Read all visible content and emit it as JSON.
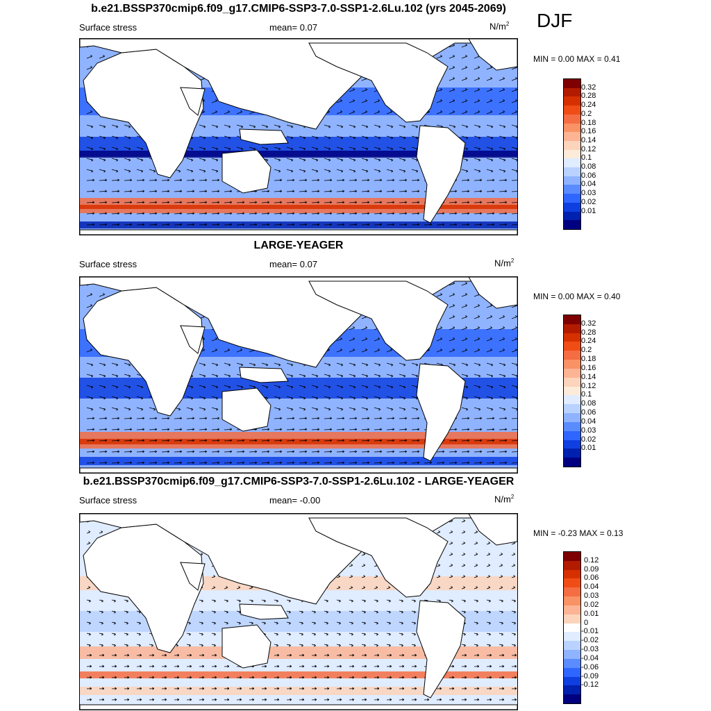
{
  "season": "DJF",
  "colors": {
    "land": "#ffffff",
    "coast": "#000000",
    "arrow": "#000000"
  },
  "panels": [
    {
      "title": "b.e21.BSSP370cmip6.f09_g17.CMIP6-SSP3-7.0-SSP1-2.6Lu.102 (yrs 2045-2069)",
      "variable": "Surface stress",
      "mean_label": "mean=",
      "mean_value": "0.07",
      "units": "N/m",
      "units_sup": "2",
      "min_label": "MIN =",
      "min_value": "0.00",
      "max_label": "MAX =",
      "max_value": "0.41",
      "colorbar_labels": [
        "0.32",
        "0.28",
        "0.24",
        "0.2",
        "0.18",
        "0.16",
        "0.14",
        "0.12",
        "0.1",
        "0.08",
        "0.06",
        "0.04",
        "0.03",
        "0.02",
        "0.01"
      ],
      "colorbar_colors": [
        "#7f0000",
        "#b31b00",
        "#d73000",
        "#f04d16",
        "#f46d43",
        "#f99265",
        "#fcb494",
        "#fcd4bb",
        "#fdebd9",
        "#e0ecff",
        "#b9d2ff",
        "#8fb3ff",
        "#5a8cff",
        "#2f66ff",
        "#0f3fe0",
        "#0020b0",
        "#000080"
      ]
    },
    {
      "title": "LARGE-YEAGER",
      "variable": "Surface stress",
      "mean_label": "mean=",
      "mean_value": "0.07",
      "units": "N/m",
      "units_sup": "2",
      "min_label": "MIN =",
      "min_value": "0.00",
      "max_label": "MAX =",
      "max_value": "0.40",
      "colorbar_labels": [
        "0.32",
        "0.28",
        "0.24",
        "0.2",
        "0.18",
        "0.16",
        "0.14",
        "0.12",
        "0.1",
        "0.08",
        "0.06",
        "0.04",
        "0.03",
        "0.02",
        "0.01"
      ],
      "colorbar_colors": [
        "#7f0000",
        "#b31b00",
        "#d73000",
        "#f04d16",
        "#f46d43",
        "#f99265",
        "#fcb494",
        "#fcd4bb",
        "#fdebd9",
        "#e0ecff",
        "#b9d2ff",
        "#8fb3ff",
        "#5a8cff",
        "#2f66ff",
        "#0f3fe0",
        "#0020b0",
        "#000080"
      ]
    },
    {
      "title": "b.e21.BSSP370cmip6.f09_g17.CMIP6-SSP3-7.0-SSP1-2.6Lu.102 - LARGE-YEAGER",
      "variable": "Surface stress",
      "mean_label": "mean=",
      "mean_value": "-0.00",
      "units": "N/m",
      "units_sup": "2",
      "min_label": "MIN =",
      "min_value": "-0.23",
      "max_label": "MAX =",
      "max_value": "0.13",
      "colorbar_labels": [
        "0.12",
        "0.09",
        "0.06",
        "0.04",
        "0.03",
        "0.02",
        "0.01",
        "0",
        "-0.01",
        "-0.02",
        "-0.03",
        "-0.04",
        "-0.06",
        "-0.09",
        "-0.12"
      ],
      "colorbar_colors": [
        "#7f0000",
        "#b31b00",
        "#d73000",
        "#f04d16",
        "#f46d43",
        "#f99265",
        "#fcb494",
        "#fcd4bb",
        "#ffffff",
        "#e0ecff",
        "#b9d2ff",
        "#8fb3ff",
        "#5a8cff",
        "#2f66ff",
        "#0f3fe0",
        "#0020b0",
        "#000080"
      ]
    }
  ]
}
